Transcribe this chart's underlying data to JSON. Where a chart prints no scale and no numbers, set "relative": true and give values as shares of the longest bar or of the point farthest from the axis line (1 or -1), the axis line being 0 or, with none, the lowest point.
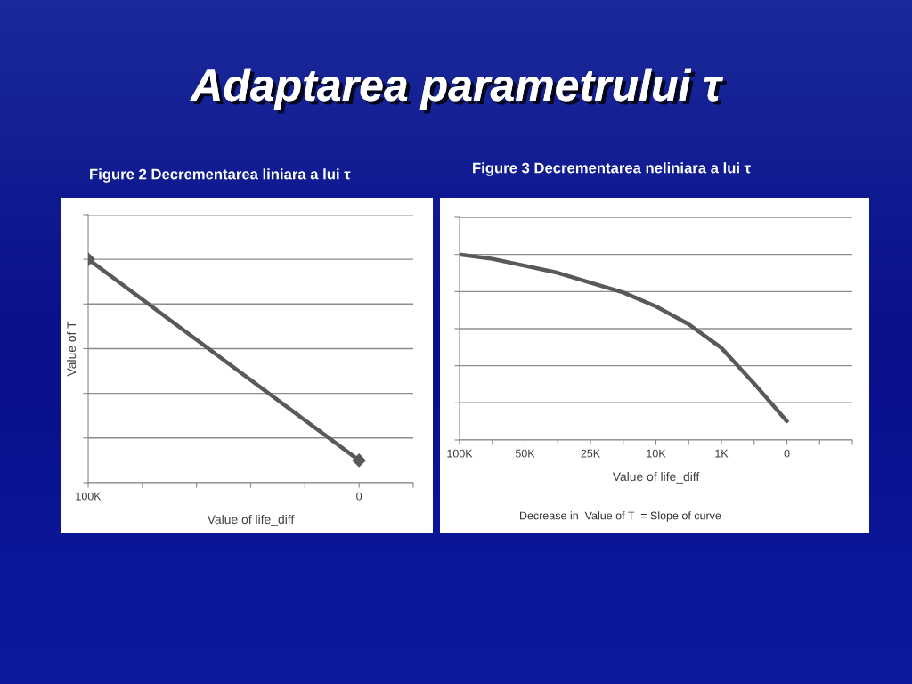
{
  "chart_data": [
    {
      "type": "line",
      "title": "Figure 2 Decrementarea liniara a lui τ",
      "xlabel": "Value of life_diff",
      "ylabel": "Value of T",
      "relative": true,
      "grid": "y",
      "marker": "diamond",
      "line_style": "solid",
      "tick_labels": "x",
      "annotations": [
        "Adaptarea parametrului τ"
      ],
      "categories": [
        "100K",
        null,
        null,
        null,
        null,
        "0",
        null
      ],
      "series": [
        {
          "color": "#595959",
          "values": [
            1,
            null,
            null,
            null,
            null,
            0.1,
            null
          ]
        }
      ]
    },
    {
      "type": "line",
      "title": "Figure 3 Decrementarea neliniara a lui τ",
      "xlabel": "Value of life_diff",
      "relative": true,
      "grid": "y",
      "marker": "none",
      "line_style": "solid",
      "tick_labels": "x",
      "annotations": [
        "Decrease in  Value of T  = Slope of curve"
      ],
      "categories": [
        "100K",
        null,
        "50K",
        null,
        "25K",
        null,
        "10K",
        null,
        "1K",
        null,
        "0",
        null,
        null
      ],
      "series": [
        {
          "color": "#595959",
          "values": [
            1,
            0.976,
            0.939,
            0.901,
            0.848,
            0.795,
            0.72,
            0.624,
            0.496,
            0.304,
            0.101,
            null,
            null
          ]
        }
      ]
    }
  ]
}
